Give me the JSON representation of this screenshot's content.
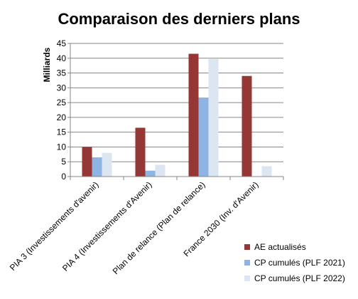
{
  "chart_data": {
    "type": "bar",
    "title": "Comparaison des derniers plans",
    "ylabel": "Milliards",
    "xlabel": "",
    "ylim": [
      0,
      45
    ],
    "yticks": [
      0,
      5,
      10,
      15,
      20,
      25,
      30,
      35,
      40,
      45
    ],
    "grid": true,
    "legend_position": "bottom-right",
    "categories": [
      "PIA 3 (Investissements d'avenir)",
      "PIA 4 (Investissements d'Avenir)",
      "Plan de relance (Plan de relance)",
      "France 2030 (Inv. d'Avenir)"
    ],
    "series": [
      {
        "name": "AE actualisés",
        "color": "#953735",
        "values": [
          10,
          16.5,
          41.5,
          34
        ]
      },
      {
        "name": "CP cumulés (PLF 2021)",
        "color": "#8eb4e3",
        "values": [
          6.5,
          2,
          26.7,
          0
        ]
      },
      {
        "name": "CP cumulés (PLF 2022)",
        "color": "#dce6f2",
        "values": [
          8,
          4,
          39.7,
          3.5
        ]
      }
    ]
  }
}
